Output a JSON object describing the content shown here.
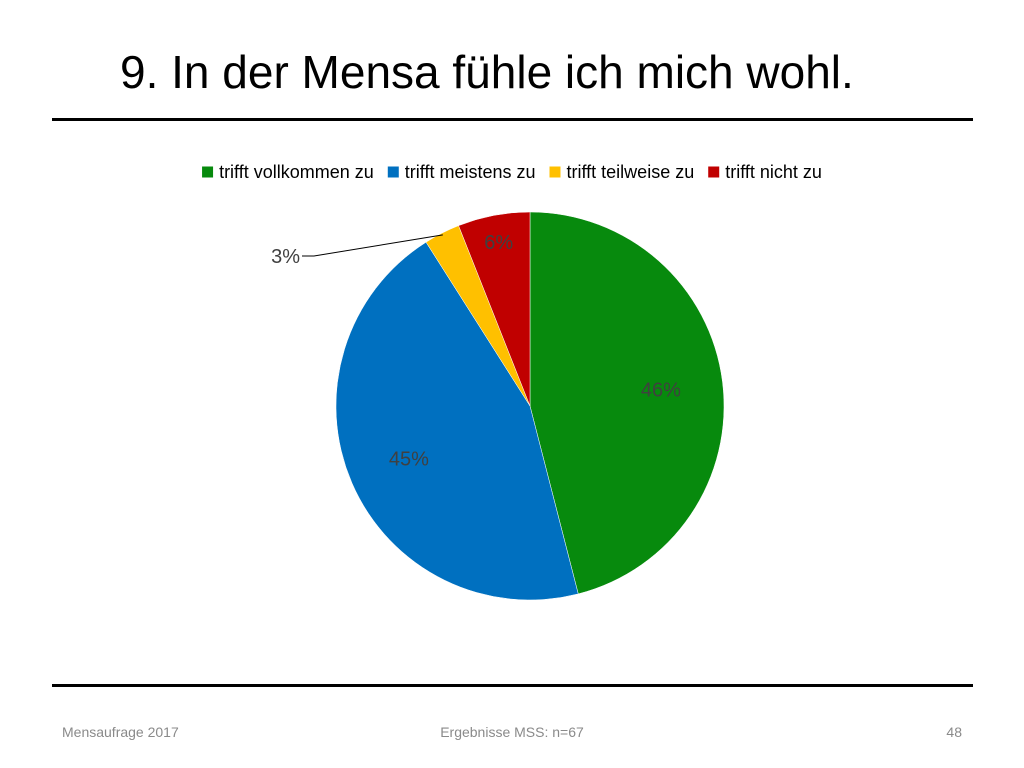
{
  "slide": {
    "title": "9. In der Mensa fühle ich mich wohl.",
    "footer_left": "Mensaufrage 2017",
    "footer_center": "Ergebnisse MSS: n=67",
    "footer_right": "48"
  },
  "chart_data": {
    "type": "pie",
    "legend_position": "top",
    "slices": [
      {
        "name": "trifft vollkommen zu",
        "value": 46,
        "label": "46%",
        "color": "#078A0D"
      },
      {
        "name": "trifft meistens zu",
        "value": 45,
        "label": "45%",
        "color": "#0070C0"
      },
      {
        "name": "trifft teilweise zu",
        "value": 3,
        "label": "3%",
        "color": "#FFC000"
      },
      {
        "name": "trifft nicht zu",
        "value": 6,
        "label": "6%",
        "color": "#C00000"
      }
    ]
  }
}
